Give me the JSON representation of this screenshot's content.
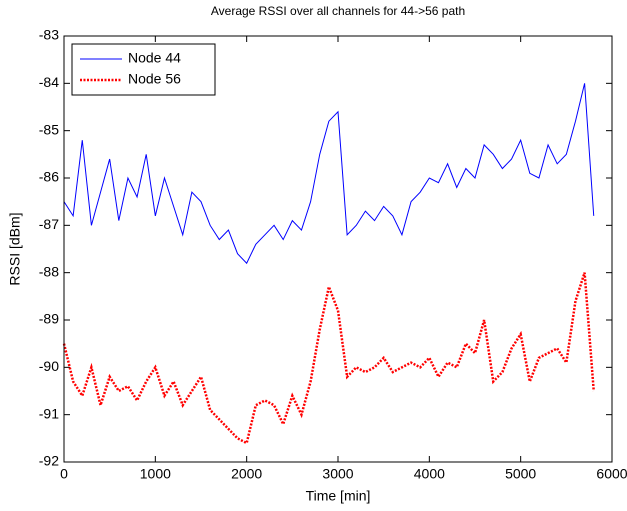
{
  "chart_data": {
    "type": "line",
    "title": "Average RSSI over all channels for 44->56 path",
    "x_label": "Time [min]",
    "y_label": "RSSI [dBm]",
    "x": [
      0,
      100,
      200,
      300,
      400,
      500,
      600,
      700,
      800,
      900,
      1000,
      1100,
      1200,
      1300,
      1400,
      1500,
      1600,
      1700,
      1800,
      1900,
      2000,
      2100,
      2200,
      2300,
      2400,
      2500,
      2600,
      2700,
      2800,
      2900,
      3000,
      3100,
      3200,
      3300,
      3400,
      3500,
      3600,
      3700,
      3800,
      3900,
      4000,
      4100,
      4200,
      4300,
      4400,
      4500,
      4600,
      4700,
      4800,
      4900,
      5000,
      5100,
      5200,
      5300,
      5400,
      5500,
      5600,
      5700,
      5800
    ],
    "series": [
      {
        "name": "Node 44",
        "color": "#0000ff",
        "linestyle": "solid",
        "values": [
          -86.5,
          -86.8,
          -85.2,
          -87.0,
          -86.3,
          -85.6,
          -86.9,
          -86.0,
          -86.4,
          -85.5,
          -86.8,
          -86.0,
          -86.6,
          -87.2,
          -86.3,
          -86.5,
          -87.0,
          -87.3,
          -87.1,
          -87.6,
          -87.8,
          -87.4,
          -87.2,
          -87.0,
          -87.3,
          -86.9,
          -87.1,
          -86.5,
          -85.5,
          -84.8,
          -84.6,
          -87.2,
          -87.0,
          -86.7,
          -86.9,
          -86.6,
          -86.8,
          -87.2,
          -86.5,
          -86.3,
          -86.0,
          -86.1,
          -85.7,
          -86.2,
          -85.8,
          -86.0,
          -85.3,
          -85.5,
          -85.8,
          -85.6,
          -85.2,
          -85.9,
          -86.0,
          -85.3,
          -85.7,
          -85.5,
          -84.8,
          -84.0,
          -86.8
        ]
      },
      {
        "name": "Node 56",
        "color": "#ff0000",
        "linestyle": "dotted",
        "values": [
          -89.5,
          -90.3,
          -90.6,
          -90.0,
          -90.8,
          -90.2,
          -90.5,
          -90.4,
          -90.7,
          -90.3,
          -90.0,
          -90.6,
          -90.3,
          -90.8,
          -90.5,
          -90.2,
          -90.9,
          -91.1,
          -91.3,
          -91.5,
          -91.6,
          -90.8,
          -90.7,
          -90.8,
          -91.2,
          -90.6,
          -91.0,
          -90.3,
          -89.2,
          -88.3,
          -88.8,
          -90.2,
          -90.0,
          -90.1,
          -90.0,
          -89.8,
          -90.1,
          -90.0,
          -89.9,
          -90.0,
          -89.8,
          -90.2,
          -89.9,
          -90.0,
          -89.5,
          -89.7,
          -89.0,
          -90.3,
          -90.1,
          -89.6,
          -89.3,
          -90.3,
          -89.8,
          -89.7,
          -89.6,
          -89.9,
          -88.6,
          -88.0,
          -90.5
        ]
      }
    ],
    "xlim": [
      0,
      6000
    ],
    "xticks": [
      0,
      1000,
      2000,
      3000,
      4000,
      5000,
      6000
    ],
    "ylim": [
      -92,
      -83
    ],
    "yticks": [
      -92,
      -91,
      -90,
      -89,
      -88,
      -87,
      -86,
      -85,
      -84,
      -83
    ],
    "grid": false,
    "legend": "upper left"
  }
}
